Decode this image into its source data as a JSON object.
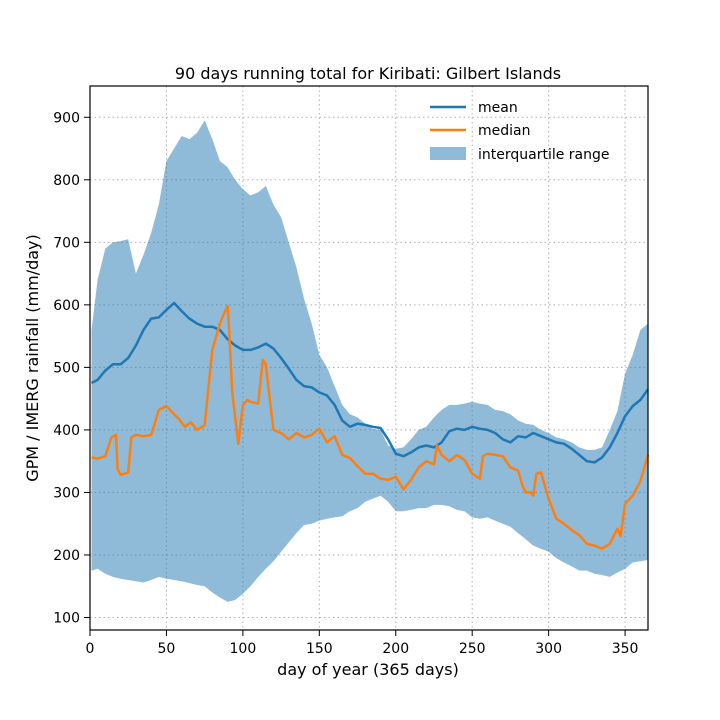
{
  "chart_data": {
    "type": "line",
    "title": "90 days running total for Kiribati: Gilbert Islands",
    "xlabel": "day of year (365 days)",
    "ylabel": "GPM / IMERG rainfall (mm/day)",
    "xlim": [
      0,
      365
    ],
    "ylim": [
      80,
      950
    ],
    "xticks": [
      0,
      50,
      100,
      150,
      200,
      250,
      300,
      350
    ],
    "yticks": [
      100,
      200,
      300,
      400,
      500,
      600,
      700,
      800,
      900
    ],
    "grid": true,
    "legend_position": "top-right",
    "colors": {
      "mean": "#1f77b4",
      "median": "#ff7f0e",
      "iqr": "#1f77b4"
    },
    "series": [
      {
        "name": "mean",
        "x": [
          1,
          5,
          10,
          15,
          20,
          25,
          30,
          35,
          40,
          45,
          50,
          55,
          60,
          65,
          70,
          75,
          80,
          85,
          90,
          95,
          100,
          105,
          110,
          115,
          120,
          125,
          130,
          135,
          140,
          145,
          150,
          155,
          160,
          165,
          170,
          175,
          180,
          185,
          190,
          195,
          200,
          205,
          210,
          215,
          220,
          225,
          230,
          235,
          240,
          245,
          250,
          255,
          260,
          265,
          270,
          275,
          280,
          285,
          290,
          295,
          300,
          305,
          310,
          315,
          320,
          325,
          330,
          335,
          340,
          345,
          350,
          355,
          360,
          365
        ],
        "values": [
          475,
          480,
          495,
          505,
          505,
          515,
          535,
          560,
          578,
          580,
          592,
          603,
          590,
          578,
          570,
          565,
          565,
          560,
          545,
          535,
          528,
          528,
          532,
          538,
          530,
          515,
          498,
          480,
          470,
          468,
          460,
          455,
          440,
          415,
          405,
          410,
          408,
          405,
          403,
          385,
          362,
          358,
          364,
          372,
          375,
          372,
          380,
          398,
          402,
          400,
          405,
          402,
          400,
          395,
          385,
          380,
          390,
          388,
          395,
          390,
          385,
          380,
          378,
          370,
          360,
          350,
          348,
          356,
          372,
          395,
          422,
          438,
          448,
          465
        ]
      },
      {
        "name": "median",
        "x": [
          1,
          5,
          10,
          14,
          17,
          18,
          20,
          25,
          27,
          30,
          35,
          40,
          45,
          50,
          55,
          58,
          62,
          66,
          70,
          75,
          77,
          80,
          85,
          88,
          90,
          91,
          93,
          95,
          97,
          100,
          103,
          105,
          110,
          113,
          115,
          118,
          120,
          125,
          130,
          135,
          140,
          145,
          150,
          155,
          160,
          165,
          170,
          175,
          180,
          185,
          190,
          195,
          200,
          205,
          210,
          215,
          220,
          225,
          227,
          230,
          235,
          240,
          245,
          250,
          255,
          257,
          260,
          265,
          270,
          275,
          280,
          283,
          285,
          288,
          290,
          292,
          295,
          300,
          305,
          310,
          315,
          320,
          325,
          330,
          335,
          340,
          345,
          347,
          350,
          355,
          360,
          365
        ],
        "values": [
          356,
          354,
          358,
          388,
          392,
          338,
          328,
          332,
          388,
          392,
          390,
          392,
          432,
          438,
          425,
          418,
          405,
          412,
          400,
          408,
          456,
          528,
          570,
          588,
          598,
          560,
          460,
          420,
          378,
          440,
          448,
          445,
          442,
          512,
          505,
          440,
          400,
          395,
          385,
          395,
          388,
          392,
          402,
          380,
          390,
          360,
          355,
          342,
          330,
          330,
          322,
          320,
          325,
          305,
          320,
          340,
          350,
          345,
          375,
          360,
          350,
          360,
          352,
          330,
          322,
          358,
          362,
          360,
          358,
          340,
          335,
          310,
          300,
          300,
          295,
          330,
          332,
          290,
          258,
          250,
          240,
          232,
          218,
          215,
          210,
          218,
          242,
          230,
          282,
          295,
          318,
          360
        ]
      }
    ],
    "iqr": {
      "name": "interquartile range",
      "x": [
        1,
        5,
        10,
        15,
        20,
        25,
        30,
        35,
        40,
        45,
        50,
        55,
        60,
        65,
        70,
        75,
        80,
        85,
        90,
        95,
        100,
        105,
        110,
        115,
        120,
        125,
        130,
        135,
        140,
        145,
        150,
        155,
        160,
        165,
        170,
        175,
        180,
        185,
        190,
        195,
        200,
        205,
        210,
        215,
        220,
        225,
        230,
        235,
        240,
        245,
        250,
        255,
        260,
        265,
        270,
        275,
        280,
        285,
        290,
        295,
        300,
        305,
        310,
        315,
        320,
        325,
        330,
        335,
        340,
        345,
        350,
        355,
        360,
        365
      ],
      "lower": [
        175,
        178,
        170,
        165,
        162,
        160,
        158,
        156,
        160,
        165,
        162,
        160,
        158,
        155,
        152,
        150,
        140,
        132,
        125,
        128,
        138,
        150,
        165,
        178,
        190,
        205,
        220,
        235,
        248,
        250,
        255,
        258,
        260,
        262,
        270,
        275,
        285,
        290,
        295,
        285,
        270,
        270,
        272,
        275,
        275,
        280,
        280,
        278,
        272,
        270,
        260,
        258,
        260,
        255,
        250,
        245,
        235,
        225,
        215,
        210,
        205,
        195,
        188,
        182,
        175,
        175,
        170,
        168,
        165,
        172,
        178,
        188,
        190,
        192
      ],
      "upper": [
        560,
        640,
        690,
        700,
        702,
        705,
        650,
        680,
        715,
        760,
        830,
        850,
        870,
        865,
        875,
        895,
        865,
        830,
        820,
        800,
        785,
        775,
        780,
        790,
        760,
        740,
        700,
        660,
        610,
        570,
        520,
        500,
        470,
        440,
        425,
        420,
        410,
        402,
        400,
        375,
        370,
        372,
        385,
        400,
        405,
        420,
        432,
        440,
        440,
        442,
        445,
        442,
        440,
        432,
        430,
        425,
        415,
        410,
        408,
        400,
        395,
        388,
        385,
        380,
        372,
        368,
        368,
        372,
        400,
        430,
        490,
        520,
        560,
        570
      ]
    }
  }
}
